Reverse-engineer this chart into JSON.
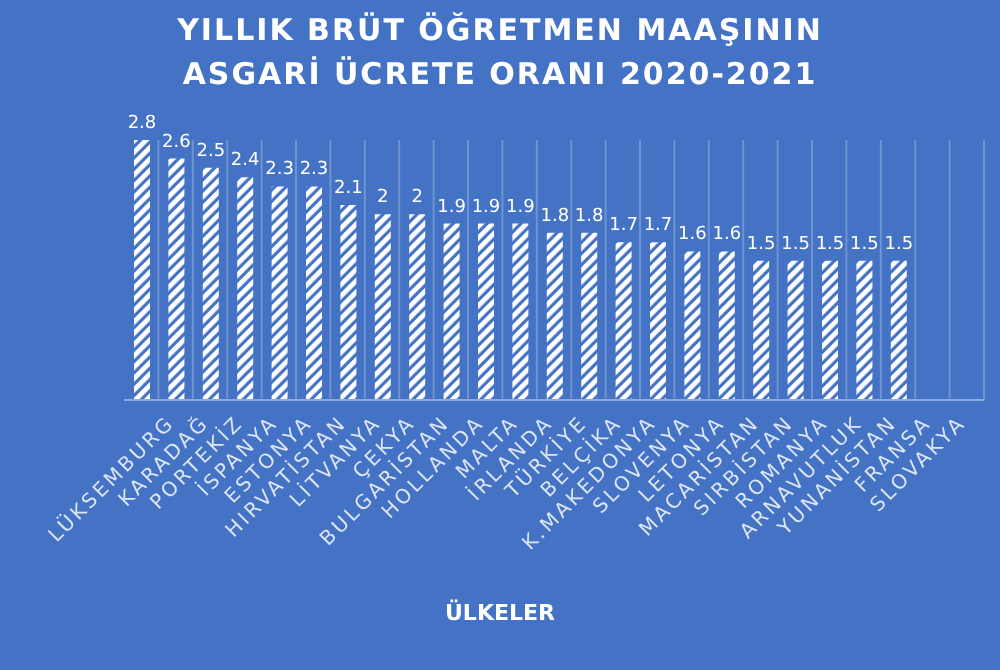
{
  "chart_data": {
    "type": "bar",
    "title": "YILLIK BRÜT ÖĞRETMEN MAAŞININ ASGARİ ÜCRETE ORANI 2020-2021",
    "xlabel": "ÜLKELER",
    "categories": [
      null,
      "LÜKSEMBURG",
      "KARADAĞ",
      "PORTEKİZ",
      "İSPANYA",
      "ESTONYA",
      "HIRVATİSTAN",
      "LİTVANYA",
      "ÇEKYA",
      "BULGARİSTAN",
      "HOLLANDA",
      "MALTA",
      "İRLANDA",
      "TÜRKİYE",
      "BELÇİKA",
      "K.MAKEDONYA",
      "SLOVENYA",
      "LETONYA",
      "MACARİSTAN",
      "SIRBİSTAN",
      "ROMANYA",
      "ARNAVUTLUK",
      "YUNANİSTAN",
      "FRANSA",
      "SLOVAKYA"
    ],
    "values": [
      2.8,
      2.6,
      2.5,
      2.4,
      2.3,
      2.3,
      2.1,
      2,
      2,
      1.9,
      1.9,
      1.9,
      1.8,
      1.8,
      1.7,
      1.7,
      1.6,
      1.6,
      1.5,
      1.5,
      1.5,
      1.5,
      1.5,
      null,
      null
    ],
    "color": "#ffffff",
    "data_labels": true,
    "grid": "x"
  }
}
